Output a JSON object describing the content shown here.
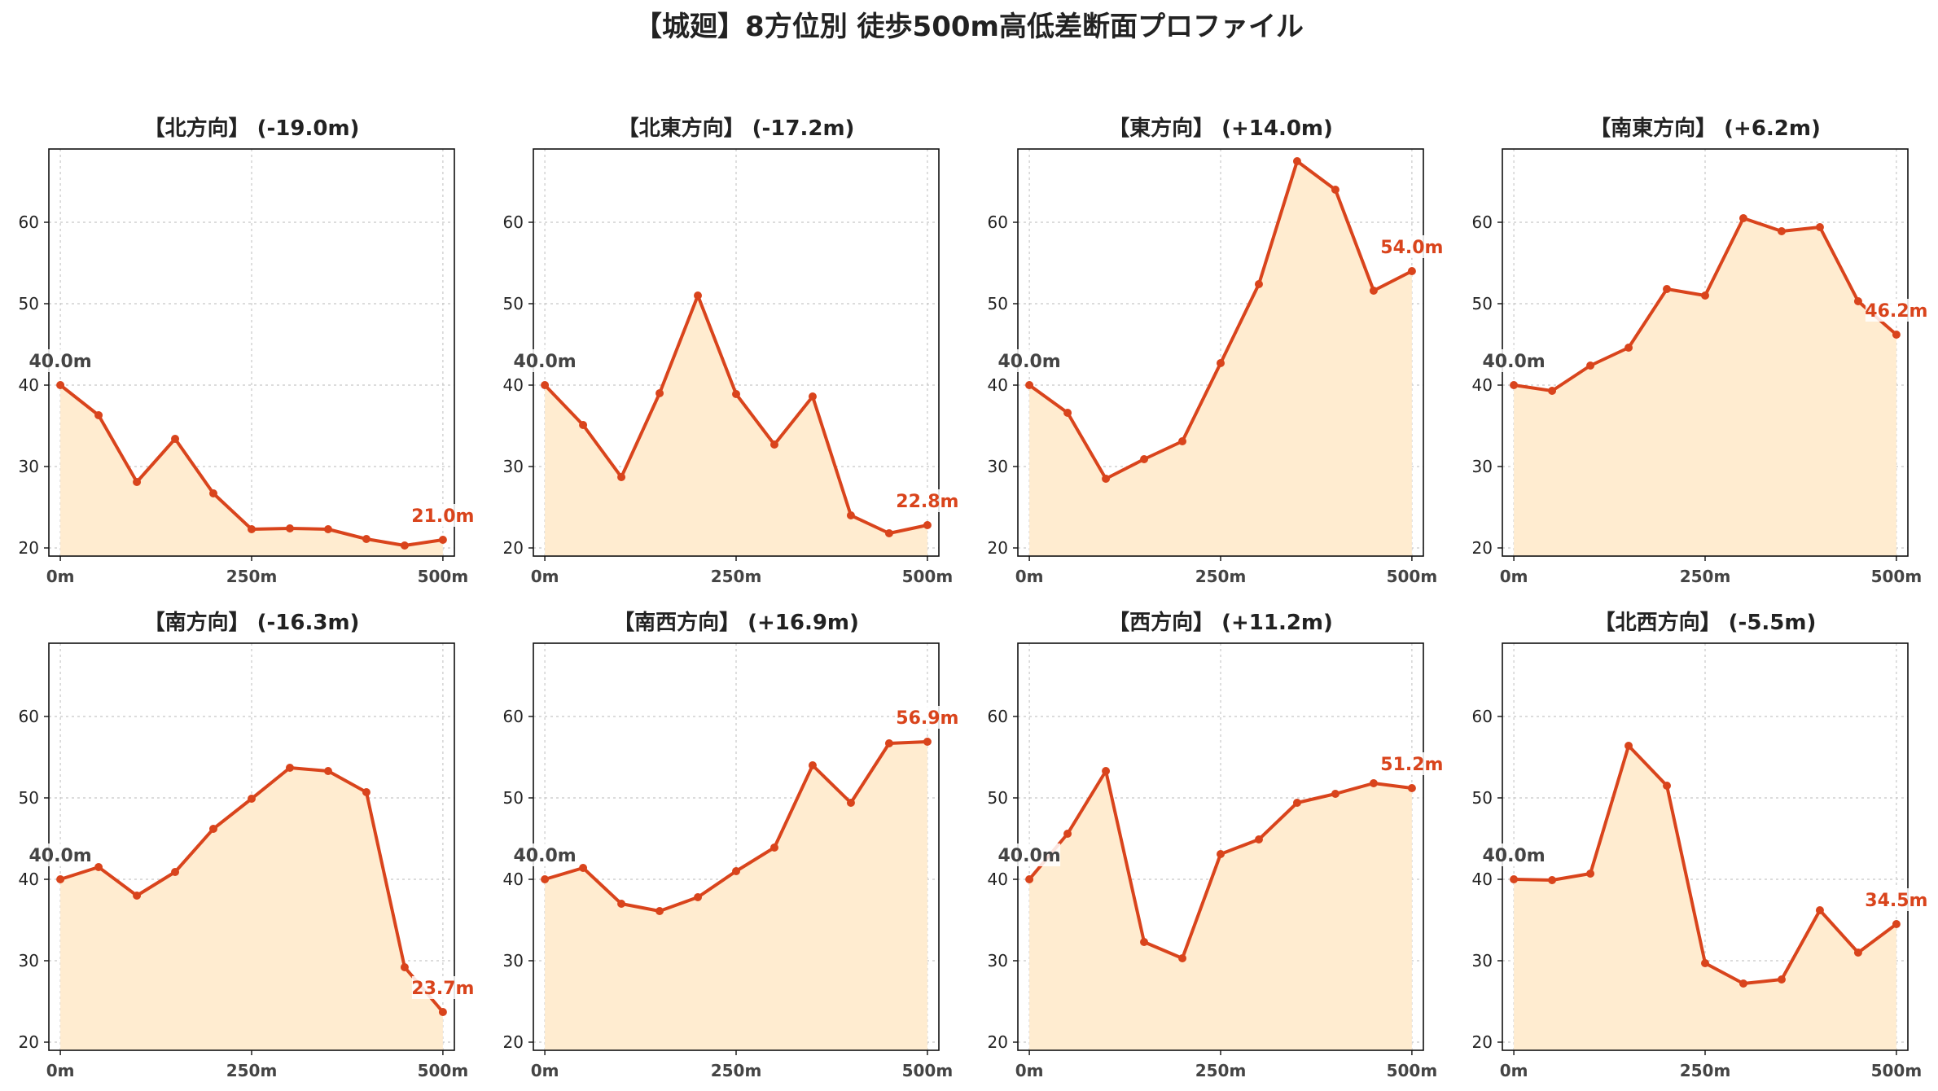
{
  "title": "【城廻】8方位別 徒歩500m高低差断面プロファイル",
  "colors": {
    "line": "#d9441c",
    "fill": "#ffecd0",
    "start_label": "#444444",
    "end_label": "#d9441c"
  },
  "chart_data": [
    {
      "type": "area",
      "title": "【北方向】 (-19.0m)",
      "x": [
        0,
        50,
        100,
        150,
        200,
        250,
        300,
        350,
        400,
        450,
        500
      ],
      "y": [
        40.0,
        36.3,
        28.1,
        33.4,
        26.7,
        22.3,
        22.4,
        22.3,
        21.1,
        20.3,
        21.0
      ],
      "start_label": "40.0m",
      "end_label": "21.0m",
      "xticks": [
        "0m",
        "250m",
        "500m"
      ],
      "yticks": [
        20,
        30,
        40,
        50,
        60
      ],
      "ylim": [
        19,
        69
      ],
      "xlim": [
        -15,
        515
      ],
      "grid": true
    },
    {
      "type": "area",
      "title": "【北東方向】 (-17.2m)",
      "x": [
        0,
        50,
        100,
        150,
        200,
        250,
        300,
        350,
        400,
        450,
        500
      ],
      "y": [
        40.0,
        35.1,
        28.7,
        39.0,
        51.0,
        38.9,
        32.7,
        38.6,
        24.0,
        21.8,
        22.8
      ],
      "start_label": "40.0m",
      "end_label": "22.8m",
      "xticks": [
        "0m",
        "250m",
        "500m"
      ],
      "yticks": [
        20,
        30,
        40,
        50,
        60
      ],
      "ylim": [
        19,
        69
      ],
      "xlim": [
        -15,
        515
      ],
      "grid": true
    },
    {
      "type": "area",
      "title": "【東方向】 (+14.0m)",
      "x": [
        0,
        50,
        100,
        150,
        200,
        250,
        300,
        350,
        400,
        450,
        500
      ],
      "y": [
        40.0,
        36.6,
        28.5,
        30.9,
        33.1,
        42.7,
        52.4,
        67.5,
        64.0,
        51.6,
        54.0
      ],
      "start_label": "40.0m",
      "end_label": "54.0m",
      "xticks": [
        "0m",
        "250m",
        "500m"
      ],
      "yticks": [
        20,
        30,
        40,
        50,
        60
      ],
      "ylim": [
        19,
        69
      ],
      "xlim": [
        -15,
        515
      ],
      "grid": true
    },
    {
      "type": "area",
      "title": "【南東方向】 (+6.2m)",
      "x": [
        0,
        50,
        100,
        150,
        200,
        250,
        300,
        350,
        400,
        450,
        500
      ],
      "y": [
        40.0,
        39.3,
        42.4,
        44.6,
        51.8,
        51.0,
        60.5,
        58.9,
        59.4,
        50.3,
        46.2
      ],
      "start_label": "40.0m",
      "end_label": "46.2m",
      "xticks": [
        "0m",
        "250m",
        "500m"
      ],
      "yticks": [
        20,
        30,
        40,
        50,
        60
      ],
      "ylim": [
        19,
        69
      ],
      "xlim": [
        -15,
        515
      ],
      "grid": true
    },
    {
      "type": "area",
      "title": "【南方向】 (-16.3m)",
      "x": [
        0,
        50,
        100,
        150,
        200,
        250,
        300,
        350,
        400,
        450,
        500
      ],
      "y": [
        40.0,
        41.5,
        38.0,
        40.9,
        46.2,
        49.9,
        53.7,
        53.3,
        50.7,
        29.2,
        23.7
      ],
      "start_label": "40.0m",
      "end_label": "23.7m",
      "xticks": [
        "0m",
        "250m",
        "500m"
      ],
      "yticks": [
        20,
        30,
        40,
        50,
        60
      ],
      "ylim": [
        19,
        69
      ],
      "xlim": [
        -15,
        515
      ],
      "grid": true
    },
    {
      "type": "area",
      "title": "【南西方向】 (+16.9m)",
      "x": [
        0,
        50,
        100,
        150,
        200,
        250,
        300,
        350,
        400,
        450,
        500
      ],
      "y": [
        40.0,
        41.4,
        37.0,
        36.1,
        37.8,
        41.0,
        43.9,
        54.0,
        49.4,
        56.7,
        56.9
      ],
      "start_label": "40.0m",
      "end_label": "56.9m",
      "xticks": [
        "0m",
        "250m",
        "500m"
      ],
      "yticks": [
        20,
        30,
        40,
        50,
        60
      ],
      "ylim": [
        19,
        69
      ],
      "xlim": [
        -15,
        515
      ],
      "grid": true
    },
    {
      "type": "area",
      "title": "【西方向】 (+11.2m)",
      "x": [
        0,
        50,
        100,
        150,
        200,
        250,
        300,
        350,
        400,
        450,
        500
      ],
      "y": [
        40.0,
        45.6,
        53.3,
        32.3,
        30.3,
        43.1,
        44.9,
        49.4,
        50.5,
        51.8,
        51.2
      ],
      "start_label": "40.0m",
      "end_label": "51.2m",
      "xticks": [
        "0m",
        "250m",
        "500m"
      ],
      "yticks": [
        20,
        30,
        40,
        50,
        60
      ],
      "ylim": [
        19,
        69
      ],
      "xlim": [
        -15,
        515
      ],
      "grid": true
    },
    {
      "type": "area",
      "title": "【北西方向】 (-5.5m)",
      "x": [
        0,
        50,
        100,
        150,
        200,
        250,
        300,
        350,
        400,
        450,
        500
      ],
      "y": [
        40.0,
        39.9,
        40.7,
        56.4,
        51.5,
        29.7,
        27.2,
        27.7,
        36.2,
        31.0,
        34.5
      ],
      "start_label": "40.0m",
      "end_label": "34.5m",
      "xticks": [
        "0m",
        "250m",
        "500m"
      ],
      "yticks": [
        20,
        30,
        40,
        50,
        60
      ],
      "ylim": [
        19,
        69
      ],
      "xlim": [
        -15,
        515
      ],
      "grid": true
    }
  ]
}
